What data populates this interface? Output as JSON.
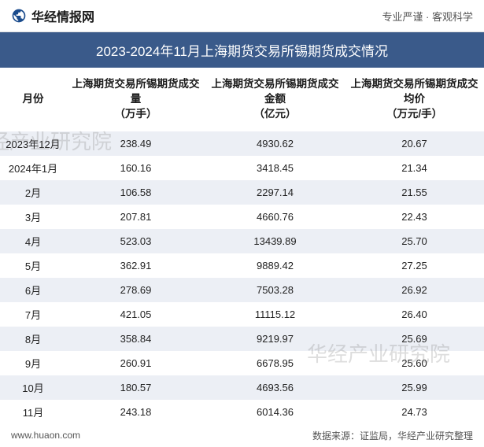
{
  "header": {
    "logo_text": "华经情报网",
    "right_text": "专业严谨 · 客观科学"
  },
  "title": "2023-2024年11月上海期货交易所锡期货成交情况",
  "table": {
    "columns": [
      {
        "key": "month",
        "label": "月份"
      },
      {
        "key": "vol",
        "label": "上海期货交易所锡期货成交量\n（万手）"
      },
      {
        "key": "amt",
        "label": "上海期货交易所锡期货成交金额\n（亿元）"
      },
      {
        "key": "price",
        "label": "上海期货交易所锡期货成交均价\n（万元/手）"
      }
    ],
    "rows": [
      {
        "month": "2023年12月",
        "vol": "238.49",
        "amt": "4930.62",
        "price": "20.67"
      },
      {
        "month": "2024年1月",
        "vol": "160.16",
        "amt": "3418.45",
        "price": "21.34"
      },
      {
        "month": "2月",
        "vol": "106.58",
        "amt": "2297.14",
        "price": "21.55"
      },
      {
        "month": "3月",
        "vol": "207.81",
        "amt": "4660.76",
        "price": "22.43"
      },
      {
        "month": "4月",
        "vol": "523.03",
        "amt": "13439.89",
        "price": "25.70"
      },
      {
        "month": "5月",
        "vol": "362.91",
        "amt": "9889.42",
        "price": "27.25"
      },
      {
        "month": "6月",
        "vol": "278.69",
        "amt": "7503.28",
        "price": "26.92"
      },
      {
        "month": "7月",
        "vol": "421.05",
        "amt": "11115.12",
        "price": "26.40"
      },
      {
        "month": "8月",
        "vol": "358.84",
        "amt": "9219.97",
        "price": "25.69"
      },
      {
        "month": "9月",
        "vol": "260.91",
        "amt": "6678.95",
        "price": "25.60"
      },
      {
        "month": "10月",
        "vol": "180.57",
        "amt": "4693.56",
        "price": "25.99"
      },
      {
        "month": "11月",
        "vol": "243.18",
        "amt": "6014.36",
        "price": "24.73"
      }
    ]
  },
  "footer": {
    "left": "www.huaon.com",
    "right": "数据来源：证监局，华经产业研究整理"
  },
  "watermark": "华经产业研究院",
  "colors": {
    "title_bg": "#3a5a8a",
    "row_odd_bg": "#eceff5",
    "logo_color": "#1a4b8c"
  }
}
